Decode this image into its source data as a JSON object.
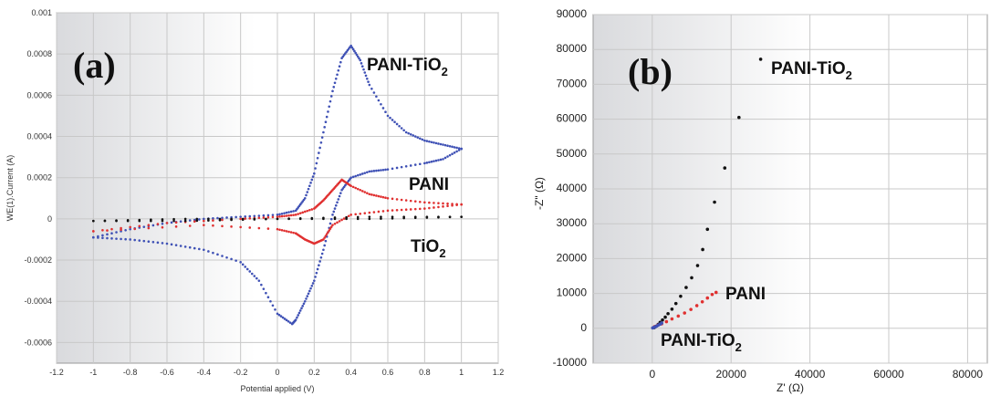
{
  "chart_data": [
    {
      "type": "scatter",
      "panel_label": "(a)",
      "xlabel": "Potential applied (V)",
      "ylabel": "WE(1).Current (A)",
      "xlim": [
        -1.2,
        1.2
      ],
      "ylim": [
        -0.0007,
        0.001
      ],
      "x_ticks": [
        "-1.2",
        "-1",
        "-0.8",
        "-0.6",
        "-0.4",
        "-0.2",
        "0",
        "0.2",
        "0.4",
        "0.6",
        "0.8",
        "1",
        "1.2"
      ],
      "y_ticks": [
        "-0.0006",
        "-0.0004",
        "-0.0002",
        "0",
        "0.0002",
        "0.0004",
        "0.0006",
        "0.0008",
        "0.001"
      ],
      "grid": true,
      "series": [
        {
          "name": "PANI-TiO",
          "name_sub": "2",
          "color": "#3f51b5",
          "forward": [
            [
              -1,
              -9e-05
            ],
            [
              -0.8,
              -5e-05
            ],
            [
              -0.6,
              -2e-05
            ],
            [
              -0.4,
              0.0
            ],
            [
              -0.2,
              1e-05
            ],
            [
              0.0,
              2e-05
            ],
            [
              0.1,
              4e-05
            ],
            [
              0.15,
              0.0001
            ],
            [
              0.2,
              0.00022
            ],
            [
              0.25,
              0.00042
            ],
            [
              0.3,
              0.00062
            ],
            [
              0.35,
              0.00078
            ],
            [
              0.4,
              0.00084
            ],
            [
              0.45,
              0.00077
            ],
            [
              0.5,
              0.00065
            ],
            [
              0.6,
              0.0005
            ],
            [
              0.7,
              0.00042
            ],
            [
              0.8,
              0.00038
            ],
            [
              0.9,
              0.00036
            ],
            [
              1.0,
              0.00034
            ]
          ],
          "reverse": [
            [
              1.0,
              0.00034
            ],
            [
              0.9,
              0.00029
            ],
            [
              0.8,
              0.00027
            ],
            [
              0.6,
              0.00024
            ],
            [
              0.5,
              0.00023
            ],
            [
              0.4,
              0.0002
            ],
            [
              0.35,
              0.00014
            ],
            [
              0.3,
              2e-05
            ],
            [
              0.25,
              -0.00015
            ],
            [
              0.2,
              -0.0003
            ],
            [
              0.15,
              -0.0004
            ],
            [
              0.1,
              -0.00049
            ],
            [
              0.08,
              -0.00051
            ],
            [
              0.0,
              -0.00046
            ],
            [
              -0.1,
              -0.0003
            ],
            [
              -0.2,
              -0.00021
            ],
            [
              -0.4,
              -0.00015
            ],
            [
              -0.6,
              -0.00012
            ],
            [
              -0.8,
              -0.0001
            ],
            [
              -1,
              -9e-05
            ]
          ]
        },
        {
          "name": "PANI",
          "color": "#e03030",
          "forward": [
            [
              -1,
              -6e-05
            ],
            [
              -0.6,
              -2e-05
            ],
            [
              -0.2,
              0.0
            ],
            [
              0.0,
              1e-05
            ],
            [
              0.1,
              2e-05
            ],
            [
              0.2,
              5e-05
            ],
            [
              0.25,
              9e-05
            ],
            [
              0.3,
              0.00014
            ],
            [
              0.35,
              0.00019
            ],
            [
              0.4,
              0.00016
            ],
            [
              0.5,
              0.00012
            ],
            [
              0.6,
              0.0001
            ],
            [
              0.8,
              8e-05
            ],
            [
              1.0,
              7e-05
            ]
          ],
          "reverse": [
            [
              1.0,
              7e-05
            ],
            [
              0.8,
              5e-05
            ],
            [
              0.6,
              4e-05
            ],
            [
              0.4,
              2e-05
            ],
            [
              0.3,
              -3e-05
            ],
            [
              0.25,
              -0.0001
            ],
            [
              0.2,
              -0.00012
            ],
            [
              0.15,
              -0.0001
            ],
            [
              0.1,
              -7e-05
            ],
            [
              0.0,
              -5e-05
            ],
            [
              -0.4,
              -3e-05
            ],
            [
              -1,
              -6e-05
            ]
          ]
        },
        {
          "name": "TiO",
          "name_sub": "2",
          "color": "#111111",
          "forward": [
            [
              -1,
              -1e-05
            ],
            [
              -0.5,
              0.0
            ],
            [
              0.0,
              0.0
            ],
            [
              0.5,
              1e-05
            ],
            [
              1.0,
              1e-05
            ]
          ],
          "reverse": [
            [
              1.0,
              1e-05
            ],
            [
              0.5,
              0.0
            ],
            [
              0.0,
              0.0
            ],
            [
              -0.5,
              -1e-05
            ],
            [
              -1,
              -1e-05
            ]
          ]
        }
      ]
    },
    {
      "type": "scatter",
      "panel_label": "(b)",
      "xlabel": "Z' (Ω)",
      "ylabel": "-Z\" (Ω)",
      "xlim": [
        -15000,
        85000
      ],
      "ylim": [
        -10000,
        90000
      ],
      "x_ticks": [
        "0",
        "20000",
        "40000",
        "60000",
        "80000"
      ],
      "y_ticks": [
        "-10000",
        "0",
        "10000",
        "20000",
        "30000",
        "40000",
        "50000",
        "60000",
        "70000",
        "80000",
        "90000"
      ],
      "grid": true,
      "series": [
        {
          "name": "PANI-TiO",
          "name_sub": "2",
          "color": "#111111",
          "points": [
            [
              500,
              200
            ],
            [
              1000,
              600
            ],
            [
              1500,
              1100
            ],
            [
              2000,
              1700
            ],
            [
              2600,
              2400
            ],
            [
              3300,
              3200
            ],
            [
              4000,
              4200
            ],
            [
              5000,
              5500
            ],
            [
              6000,
              7100
            ],
            [
              7200,
              9200
            ],
            [
              8600,
              11700
            ],
            [
              10000,
              14500
            ],
            [
              11500,
              18000
            ],
            [
              12800,
              22600
            ],
            [
              14000,
              28400
            ],
            [
              15800,
              36200
            ],
            [
              18400,
              46000
            ],
            [
              22000,
              60500
            ],
            [
              27500,
              77200
            ]
          ]
        },
        {
          "name": "PANI",
          "color": "#e03030",
          "points": [
            [
              600,
              500
            ],
            [
              1400,
              900
            ],
            [
              2400,
              1300
            ],
            [
              3600,
              1900
            ],
            [
              5000,
              2700
            ],
            [
              6600,
              3500
            ],
            [
              8200,
              4400
            ],
            [
              9800,
              5400
            ],
            [
              11300,
              6500
            ],
            [
              12700,
              7600
            ],
            [
              14000,
              8700
            ],
            [
              15200,
              9700
            ],
            [
              16200,
              10300
            ]
          ]
        },
        {
          "name": "PANI-TiO",
          "name_sub": "2",
          "color": "#3f51b5",
          "points": [
            [
              100,
              100
            ],
            [
              400,
              250
            ],
            [
              800,
              450
            ],
            [
              1200,
              700
            ],
            [
              1600,
              950
            ],
            [
              2000,
              1200
            ],
            [
              2400,
              1500
            ]
          ]
        }
      ]
    }
  ]
}
